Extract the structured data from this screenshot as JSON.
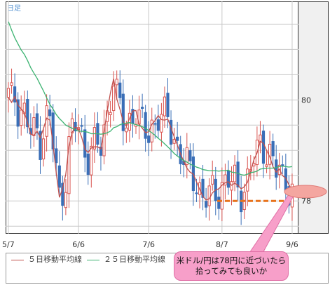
{
  "chart_data": {
    "type": "candlestick",
    "title": "日足",
    "xlabel": "",
    "ylabel": "",
    "x_ticks": [
      "5/7",
      "6/6",
      "7/6",
      "8/7",
      "9/6"
    ],
    "y_ticks": [
      80,
      78
    ],
    "ylim": [
      77.35,
      81.95
    ],
    "grid": true,
    "series": [
      {
        "name": "５日移動平均線",
        "color": "#c0504d",
        "values": [
          80.05,
          79.95,
          80.07,
          79.9,
          79.82,
          79.75,
          79.55,
          79.32,
          79.3,
          79.38,
          79.25,
          79.43,
          79.64,
          79.6,
          79.12,
          78.55,
          78.07,
          78.24,
          78.53,
          79.09,
          79.36,
          79.46,
          79.43,
          79.26,
          79.02,
          78.96,
          79.05,
          79.07,
          79.07,
          79.03,
          79.37,
          79.77,
          80.14,
          80.42,
          80.02,
          79.81,
          79.57,
          79.48,
          79.63,
          79.78,
          79.79,
          79.52,
          79.44,
          79.35,
          79.37,
          79.52,
          79.59,
          79.69,
          79.61,
          79.6,
          79.62,
          79.45,
          79.27,
          79.11,
          78.93,
          78.78,
          78.65,
          78.57,
          78.53,
          78.38,
          78.23,
          78.09,
          78.02,
          78.04,
          78.16,
          78.22,
          78.24,
          78.31,
          78.36,
          78.38,
          78.31,
          78.35,
          78.31,
          78.24,
          78.28,
          78.37,
          78.59,
          78.81,
          78.95,
          79.18,
          79.14,
          79.0,
          78.87,
          78.68,
          78.57,
          78.63,
          78.5,
          78.45,
          78.32,
          78.2
        ]
      },
      {
        "name": "２５日移動平均線",
        "color": "#3cb371",
        "values": [
          81.55,
          81.38,
          81.23,
          81.11,
          80.99,
          80.9,
          80.78,
          80.64,
          80.53,
          80.43,
          80.3,
          80.18,
          80.04,
          79.91,
          79.82,
          79.71,
          79.63,
          79.57,
          79.5,
          79.47,
          79.44,
          79.41,
          79.38,
          79.38,
          79.37,
          79.36,
          79.33,
          79.33,
          79.33,
          79.32,
          79.33,
          79.35,
          79.38,
          79.45,
          79.47,
          79.51,
          79.53,
          79.54,
          79.55,
          79.53,
          79.51,
          79.49,
          79.47,
          79.44,
          79.39,
          79.35,
          79.3,
          79.24,
          79.19,
          79.13,
          79.07,
          79.01,
          78.94,
          78.89,
          78.84,
          78.8,
          78.77,
          78.73,
          78.7,
          78.67,
          78.65,
          78.62,
          78.61,
          78.6,
          78.6,
          78.6,
          78.59,
          78.6,
          78.6,
          78.61,
          78.57,
          78.56,
          78.55,
          78.52,
          78.51,
          78.53,
          78.56,
          78.57,
          78.59,
          78.63,
          78.64,
          78.65,
          78.65,
          78.65,
          78.66,
          78.68,
          78.69,
          78.68,
          78.67,
          78.68
        ]
      }
    ],
    "annotations": [
      {
        "text": "米ドル/円は78円に近づいたら拾ってみても良いか",
        "lines": [
          "米ドル/円は78円に近づいたら",
          "拾ってみても良いか"
        ],
        "target_y": 78
      }
    ]
  }
}
